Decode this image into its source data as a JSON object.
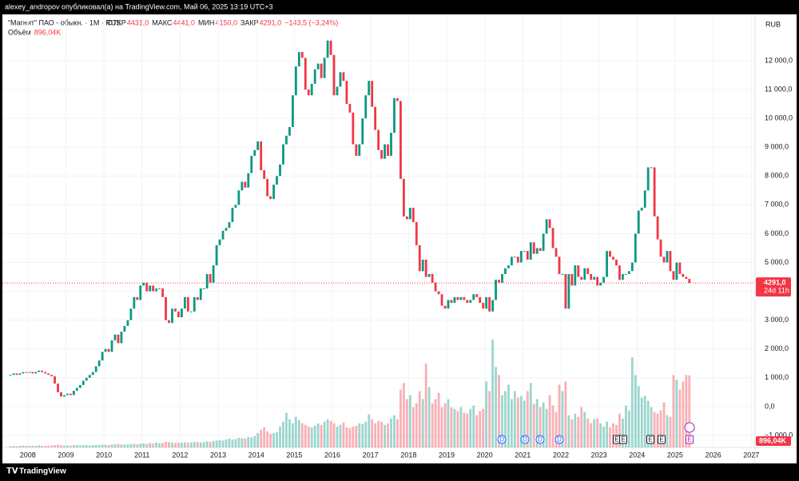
{
  "header": {
    "publisher": "alexey_andropov опубликовал(а) на TradingView.com, Май 06, 2025 13:19 UTC+3"
  },
  "chart_data": {
    "type": "candlestick",
    "title": "“Магнит” ПАО - обыкн. · 1M · RUS",
    "legend": {
      "open_label": "ОТКР",
      "open": {
        "value": 4431,
        "label": "4431,0"
      },
      "high_label": "МАКС",
      "high": {
        "value": 4441,
        "label": "4441,0"
      },
      "low_label": "МИН",
      "low": {
        "value": 4150,
        "label": "4150,0"
      },
      "close_label": "ЗАКР",
      "close": {
        "value": 4291,
        "label": "4291,0"
      },
      "change": "−143,5 (−3,24%)"
    },
    "volume_title": "Объём",
    "volume_last": {
      "value": 896040,
      "label": "896,04K"
    },
    "currency": "RUB",
    "last_price": {
      "value": 4291,
      "label": "4291,0"
    },
    "countdown": "24d 11h",
    "up_color": "#089981",
    "down_color": "#f23645",
    "open": [
      1080,
      1100,
      1150,
      1100,
      1150,
      1200,
      1180,
      1200,
      1150,
      1200,
      1250,
      1200,
      1150,
      1100,
      1050,
      800,
      500,
      350,
      400,
      450,
      400,
      550,
      650,
      750,
      900,
      1000,
      1100,
      1200,
      1400,
      1600,
      1900,
      2000,
      1900,
      2300,
      2500,
      2200,
      2600,
      2800,
      3000,
      3400,
      3800,
      3700,
      4200,
      4300,
      4000,
      4200,
      4000,
      4100,
      4100,
      3800,
      3000,
      2900,
      3400,
      3300,
      3100,
      3400,
      3800,
      3300,
      3300,
      3800,
      3700,
      4100,
      4100,
      4600,
      4300,
      4900,
      5600,
      5800,
      6100,
      6200,
      6400,
      6900,
      7000,
      7500,
      7800,
      7600,
      8100,
      8700,
      8900,
      9200,
      8200,
      7900,
      7300,
      7200,
      7700,
      8000,
      8400,
      9100,
      9400,
      9700,
      10800,
      11800,
      12300,
      12100,
      11000,
      10800,
      11200,
      11700,
      11900,
      11400,
      12100,
      12700,
      12200,
      10800,
      11100,
      11600,
      11300,
      10500,
      10200,
      9100,
      8700,
      9100,
      10000,
      10800,
      11300,
      10400,
      9600,
      8900,
      8600,
      9100,
      8700,
      9500,
      10700,
      10600,
      7900,
      6600,
      6500,
      6900,
      6400,
      5600,
      4700,
      5100,
      4500,
      4600,
      4300,
      4000,
      3900,
      3500,
      3400,
      3700,
      3600,
      3800,
      3700,
      3800,
      3700,
      3600,
      3700,
      3900,
      3800,
      3600,
      3400,
      3800,
      3300,
      3700,
      4400,
      4300,
      4600,
      4800,
      4900,
      5200,
      5200,
      5000,
      5400,
      5400,
      5100,
      5700,
      5300,
      5500,
      5400,
      6000,
      6500,
      6200,
      5500,
      5200,
      4600,
      4600,
      3400,
      4600,
      4200,
      4900,
      4500,
      4400,
      4800,
      4600,
      4400,
      4500,
      4200,
      4300,
      4500,
      5400,
      5200,
      5100,
      4900,
      4400,
      4600,
      4600,
      4700,
      5000,
      6000,
      6800,
      6900,
      7500,
      8300,
      8300,
      6600,
      5800,
      5200,
      5000,
      5400,
      4700,
      4400,
      5000,
      4600,
      4500,
      4431
    ],
    "close": [
      1100,
      1150,
      1100,
      1150,
      1200,
      1180,
      1200,
      1150,
      1200,
      1250,
      1200,
      1150,
      1100,
      1050,
      800,
      500,
      350,
      400,
      450,
      400,
      550,
      650,
      750,
      900,
      1000,
      1100,
      1200,
      1400,
      1600,
      1900,
      2000,
      1900,
      2300,
      2500,
      2200,
      2600,
      2800,
      3000,
      3400,
      3800,
      3700,
      4200,
      4300,
      4000,
      4200,
      4000,
      4100,
      4100,
      3800,
      3000,
      2900,
      3400,
      3300,
      3100,
      3400,
      3800,
      3300,
      3300,
      3800,
      3700,
      4100,
      4100,
      4600,
      4300,
      4900,
      5600,
      5800,
      6100,
      6200,
      6400,
      6900,
      7000,
      7500,
      7800,
      7600,
      8100,
      8700,
      8900,
      9200,
      8200,
      7900,
      7300,
      7200,
      7700,
      8000,
      8400,
      9100,
      9400,
      9700,
      10800,
      11800,
      12300,
      12100,
      11000,
      10800,
      11200,
      11700,
      11900,
      11400,
      12100,
      12700,
      12200,
      10800,
      11100,
      11600,
      11300,
      10500,
      10200,
      9100,
      8700,
      9100,
      10000,
      10800,
      11300,
      10400,
      9600,
      8900,
      8600,
      9100,
      8700,
      9500,
      10700,
      10600,
      7900,
      6600,
      6500,
      6900,
      6400,
      5600,
      4700,
      5100,
      4500,
      4600,
      4300,
      4000,
      3900,
      3500,
      3400,
      3700,
      3600,
      3800,
      3700,
      3800,
      3700,
      3600,
      3700,
      3900,
      3800,
      3600,
      3400,
      3800,
      3300,
      3700,
      4400,
      4300,
      4600,
      4800,
      4900,
      5200,
      5200,
      5000,
      5400,
      5400,
      5100,
      5700,
      5300,
      5500,
      5400,
      6000,
      6500,
      6200,
      5500,
      5200,
      4600,
      4600,
      3400,
      4600,
      4200,
      4900,
      4500,
      4400,
      4800,
      4600,
      4400,
      4500,
      4200,
      4300,
      4500,
      5400,
      5200,
      5100,
      4900,
      4400,
      4600,
      4600,
      4700,
      5000,
      6000,
      6800,
      6900,
      7500,
      8300,
      8300,
      6600,
      5800,
      5200,
      5000,
      5400,
      4700,
      4400,
      5000,
      4600,
      4500,
      4431,
      4291
    ],
    "volume": [
      15000,
      18000,
      16000,
      20000,
      22000,
      18000,
      20000,
      22000,
      18000,
      25000,
      20000,
      18000,
      22000,
      25000,
      30000,
      35000,
      28000,
      25000,
      25000,
      22000,
      28000,
      30000,
      26000,
      28000,
      30000,
      25000,
      28000,
      30000,
      32000,
      35000,
      35000,
      30000,
      38000,
      40000,
      45000,
      38000,
      36000,
      40000,
      42000,
      45000,
      40000,
      48000,
      50000,
      45000,
      55000,
      48000,
      60000,
      52000,
      55000,
      70000,
      65000,
      60000,
      55000,
      58000,
      60000,
      65000,
      58000,
      62000,
      70000,
      66000,
      60000,
      65000,
      75000,
      70000,
      80000,
      85000,
      90000,
      85000,
      100000,
      110000,
      95000,
      105000,
      120000,
      115000,
      110000,
      130000,
      125000,
      140000,
      180000,
      220000,
      250000,
      200000,
      170000,
      180000,
      190000,
      260000,
      320000,
      430000,
      350000,
      300000,
      380000,
      340000,
      300000,
      280000,
      260000,
      250000,
      270000,
      300000,
      280000,
      320000,
      350000,
      330000,
      300000,
      260000,
      280000,
      310000,
      250000,
      240000,
      260000,
      270000,
      300000,
      290000,
      320000,
      410000,
      350000,
      300000,
      330000,
      320000,
      280000,
      300000,
      360000,
      400000,
      350000,
      720000,
      800000,
      600000,
      650000,
      500000,
      550000,
      700000,
      600000,
      1040000,
      750000,
      550000,
      600000,
      680000,
      500000,
      550000,
      600000,
      500000,
      480000,
      450000,
      500000,
      430000,
      420000,
      480000,
      520000,
      400000,
      450000,
      480000,
      820000,
      700000,
      1340000,
      1000000,
      900000,
      650000,
      700000,
      780000,
      600000,
      700000,
      620000,
      640000,
      580000,
      700000,
      800000,
      540000,
      600000,
      500000,
      560000,
      480000,
      650000,
      520000,
      440000,
      780000,
      700000,
      820000,
      400000,
      350000,
      420000,
      380000,
      500000,
      440000,
      360000,
      300000,
      350000,
      360000,
      300000,
      260000,
      320000,
      250000,
      300000,
      280000,
      420000,
      360000,
      520000,
      460000,
      1120000,
      900000,
      760000,
      620000,
      640000,
      580000,
      500000,
      440000,
      420000,
      460000,
      560000,
      400000,
      380000,
      900000,
      840000,
      720000,
      820000,
      900000,
      896040
    ],
    "ylim": [
      -1416,
      13607
    ],
    "yticks": [
      {
        "value": -1000,
        "label": "−1 000,0"
      },
      {
        "value": 0,
        "label": "0,0"
      },
      {
        "value": 1000,
        "label": "1 000,0"
      },
      {
        "value": 2000,
        "label": "2 000,0"
      },
      {
        "value": 3000,
        "label": "3 000,0"
      },
      {
        "value": 4000,
        "label": "4 000,0"
      },
      {
        "value": 5000,
        "label": "5 000,0"
      },
      {
        "value": 6000,
        "label": "6 000,0"
      },
      {
        "value": 7000,
        "label": "7 000,0"
      },
      {
        "value": 8000,
        "label": "8 000,0"
      },
      {
        "value": 9000,
        "label": "9 000,0"
      },
      {
        "value": 10000,
        "label": "10 000,0"
      },
      {
        "value": 11000,
        "label": "11 000,0"
      },
      {
        "value": 12000,
        "label": "12 000,0"
      }
    ],
    "xlim": [
      2007.27,
      2027.1
    ],
    "xticks": [
      2008,
      2009,
      2010,
      2011,
      2012,
      2013,
      2014,
      2015,
      2016,
      2017,
      2018,
      2019,
      2020,
      2021,
      2022,
      2023,
      2024,
      2025,
      2026,
      2027
    ],
    "grid": true,
    "events": [
      "D",
      "D",
      "D",
      "D",
      "E",
      "E",
      "E",
      "E",
      "E"
    ]
  },
  "footer": {
    "brand": "TradingView"
  }
}
